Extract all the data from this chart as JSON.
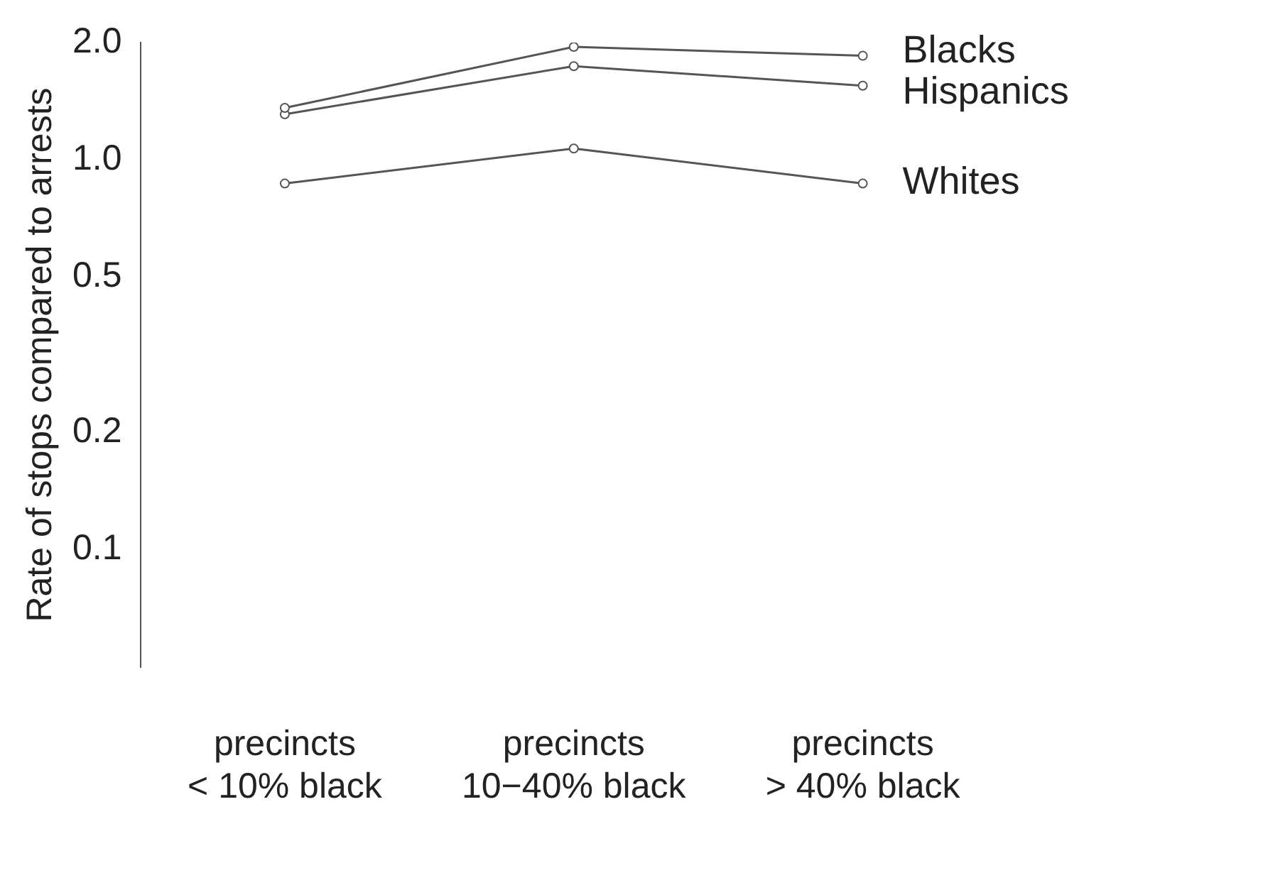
{
  "chart_data": {
    "type": "line",
    "ylabel": "Rate of stops compared to arrests",
    "categories": [
      "precincts\n< 10% black",
      "precincts\n10−40% black",
      "precincts\n> 40% black"
    ],
    "series": [
      {
        "name": "Blacks",
        "color": "#555555",
        "values": [
          1.36,
          1.95,
          1.85
        ]
      },
      {
        "name": "Hispanics",
        "color": "#555555",
        "values": [
          1.31,
          1.74,
          1.55
        ]
      },
      {
        "name": "Whites",
        "color": "#555555",
        "values": [
          0.87,
          1.07,
          0.87
        ]
      }
    ],
    "log": true,
    "ylim": [
      0.05,
      2
    ],
    "yticks": [
      {
        "value": 0.1,
        "label": "0.1"
      },
      {
        "value": 0.2,
        "label": "0.2"
      },
      {
        "value": 0.5,
        "label": "0.5"
      },
      {
        "value": 1,
        "label": "1.0"
      },
      {
        "value": 2,
        "label": "2.0"
      }
    ],
    "grid": false,
    "legend": false,
    "marker": "circle",
    "line_style": "solid"
  }
}
